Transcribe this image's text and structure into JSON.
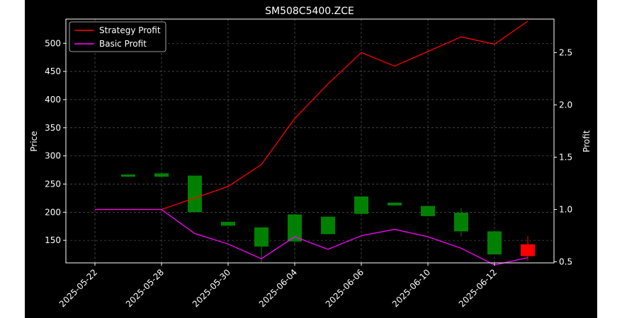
{
  "chart_data": {
    "type": "candlestick+line",
    "title": "SM508C5400.ZCE",
    "ylabel_left": "Price",
    "ylabel_right": "Profit",
    "ylim_left": [
      110,
      543
    ],
    "ylim_right": [
      0.49,
      2.82
    ],
    "left_ticks": [
      150,
      200,
      250,
      300,
      350,
      400,
      450,
      500
    ],
    "right_ticks": [
      "0.5",
      "1.0",
      "1.5",
      "2.0",
      "2.5"
    ],
    "x_tick_labels": [
      "2025-05-22",
      "2025-05-28",
      "2025-05-30",
      "2025-06-04",
      "2025-06-06",
      "2025-06-10",
      "2025-06-12"
    ],
    "x_tick_indices": [
      0,
      2,
      4,
      6,
      8,
      10,
      12
    ],
    "grid": true,
    "legend_position": "upper-left",
    "candles": [
      {
        "i": 1,
        "open": 263,
        "close": 267,
        "high": 267,
        "low": 263
      },
      {
        "i": 2,
        "open": 263,
        "close": 269,
        "high": 269,
        "low": 263
      },
      {
        "i": 3,
        "open": 200,
        "close": 265,
        "high": 265,
        "low": 200
      },
      {
        "i": 4,
        "open": 176,
        "close": 183,
        "high": 183,
        "low": 176
      },
      {
        "i": 5,
        "open": 139,
        "close": 173,
        "high": 173,
        "low": 111
      },
      {
        "i": 6,
        "open": 148,
        "close": 196,
        "high": 196,
        "low": 140
      },
      {
        "i": 7,
        "open": 161,
        "close": 192,
        "high": 192,
        "low": 161
      },
      {
        "i": 8,
        "open": 197,
        "close": 228,
        "high": 228,
        "low": 197
      },
      {
        "i": 9,
        "open": 212,
        "close": 217,
        "high": 217,
        "low": 212
      },
      {
        "i": 10,
        "open": 193,
        "close": 211,
        "high": 211,
        "low": 193
      },
      {
        "i": 11,
        "open": 166,
        "close": 199,
        "high": 207,
        "low": 157
      },
      {
        "i": 12,
        "open": 125,
        "close": 166,
        "high": 166,
        "low": 125
      },
      {
        "i": 13,
        "open": 143,
        "close": 122,
        "high": 158,
        "low": 114
      }
    ],
    "series": [
      {
        "name": "Strategy Profit",
        "color": "#ff0000",
        "x": [
          0,
          2,
          4,
          5,
          6,
          7,
          8,
          9,
          10,
          11,
          12,
          13
        ],
        "values": [
          1.0,
          1.0,
          1.22,
          1.43,
          1.87,
          2.2,
          2.5,
          2.37,
          2.51,
          2.65,
          2.58,
          2.8
        ]
      },
      {
        "name": "Basic Profit",
        "color": "#ff00ff",
        "x": [
          0,
          2,
          3,
          4,
          5,
          6,
          7,
          8,
          9,
          10,
          11,
          12,
          13
        ],
        "values": [
          1.0,
          1.0,
          0.77,
          0.67,
          0.53,
          0.74,
          0.62,
          0.75,
          0.81,
          0.74,
          0.63,
          0.47,
          0.54
        ]
      }
    ],
    "up_color": "#008000",
    "down_color": "#ff0000"
  }
}
